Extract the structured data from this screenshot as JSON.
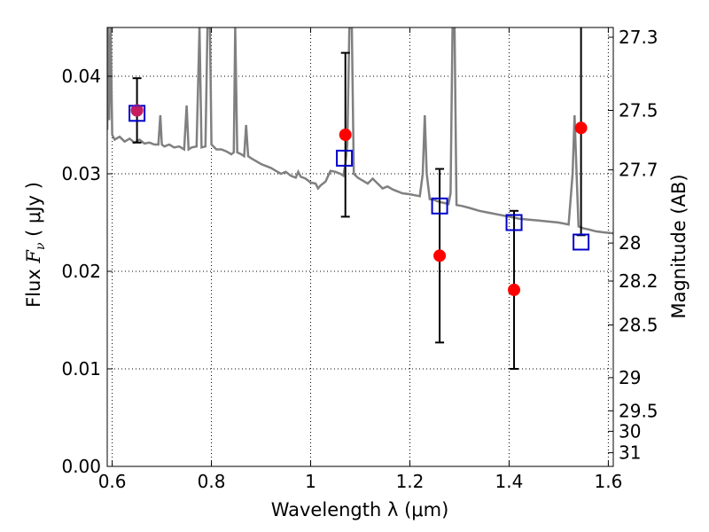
{
  "chart_data": {
    "type": "scatter",
    "xlabel": "Wavelength  λ (μm)",
    "ylabel_prefix": "Flux  ",
    "ylabel_symbol": "F",
    "ylabel_sub": "ν",
    "ylabel_suffix": "  (  μJy )",
    "ylabel_right": "Magnitude (AB)",
    "xlim": [
      0.59,
      1.61
    ],
    "ylim": [
      0.0,
      0.045
    ],
    "grid": true,
    "x_ticks": [
      {
        "value": 0.6,
        "label": "0.6"
      },
      {
        "value": 0.8,
        "label": "0.8"
      },
      {
        "value": 1.0,
        "label": "1"
      },
      {
        "value": 1.2,
        "label": "1.2"
      },
      {
        "value": 1.4,
        "label": "1.4"
      },
      {
        "value": 1.6,
        "label": "1.6"
      }
    ],
    "y_ticks": [
      {
        "value": 0.0,
        "label": "0.00"
      },
      {
        "value": 0.01,
        "label": "0.01"
      },
      {
        "value": 0.02,
        "label": "0.02"
      },
      {
        "value": 0.03,
        "label": "0.03"
      },
      {
        "value": 0.04,
        "label": "0.04"
      }
    ],
    "right_ticks": [
      {
        "flux": 0.044,
        "label": "27.3"
      },
      {
        "flux": 0.0365,
        "label": "27.5"
      },
      {
        "flux": 0.0304,
        "label": "27.7"
      },
      {
        "flux": 0.0229,
        "label": "28"
      },
      {
        "flux": 0.019,
        "label": "28.2"
      },
      {
        "flux": 0.0145,
        "label": "28.5"
      },
      {
        "flux": 0.0091,
        "label": "29"
      },
      {
        "flux": 0.0057,
        "label": "29.5"
      },
      {
        "flux": 0.0036,
        "label": "30"
      },
      {
        "flux": 0.0014,
        "label": "31"
      }
    ],
    "series": [
      {
        "kind": "line",
        "color": "#808080",
        "points": [
          [
            0.59,
            0.0345
          ],
          [
            0.592,
            0.045
          ],
          [
            0.594,
            0.0355
          ],
          [
            0.597,
            0.045
          ],
          [
            0.6,
            0.034
          ],
          [
            0.605,
            0.0335
          ],
          [
            0.615,
            0.0338
          ],
          [
            0.625,
            0.0333
          ],
          [
            0.635,
            0.0336
          ],
          [
            0.645,
            0.0332
          ],
          [
            0.655,
            0.0335
          ],
          [
            0.665,
            0.0331
          ],
          [
            0.675,
            0.0332
          ],
          [
            0.685,
            0.033
          ],
          [
            0.693,
            0.033
          ],
          [
            0.697,
            0.036
          ],
          [
            0.7,
            0.033
          ],
          [
            0.705,
            0.0328
          ],
          [
            0.715,
            0.033
          ],
          [
            0.725,
            0.0327
          ],
          [
            0.735,
            0.0328
          ],
          [
            0.745,
            0.0325
          ],
          [
            0.75,
            0.037
          ],
          [
            0.754,
            0.0325
          ],
          [
            0.76,
            0.0327
          ],
          [
            0.77,
            0.0328
          ],
          [
            0.776,
            0.045
          ],
          [
            0.78,
            0.0327
          ],
          [
            0.788,
            0.0328
          ],
          [
            0.792,
            0.045
          ],
          [
            0.797,
            0.045
          ],
          [
            0.8,
            0.033
          ],
          [
            0.81,
            0.0325
          ],
          [
            0.82,
            0.0325
          ],
          [
            0.83,
            0.0323
          ],
          [
            0.84,
            0.032
          ],
          [
            0.845,
            0.0322
          ],
          [
            0.848,
            0.045
          ],
          [
            0.852,
            0.0322
          ],
          [
            0.86,
            0.032
          ],
          [
            0.866,
            0.0318
          ],
          [
            0.87,
            0.035
          ],
          [
            0.874,
            0.0318
          ],
          [
            0.88,
            0.0316
          ],
          [
            0.89,
            0.0313
          ],
          [
            0.9,
            0.031
          ],
          [
            0.91,
            0.0308
          ],
          [
            0.92,
            0.0306
          ],
          [
            0.93,
            0.0303
          ],
          [
            0.94,
            0.03
          ],
          [
            0.95,
            0.0302
          ],
          [
            0.96,
            0.0298
          ],
          [
            0.97,
            0.0296
          ],
          [
            0.975,
            0.0302
          ],
          [
            0.98,
            0.0297
          ],
          [
            0.99,
            0.0295
          ],
          [
            1.0,
            0.0291
          ],
          [
            1.01,
            0.029
          ],
          [
            1.015,
            0.0285
          ],
          [
            1.02,
            0.0288
          ],
          [
            1.03,
            0.0292
          ],
          [
            1.04,
            0.0303
          ],
          [
            1.05,
            0.0302
          ],
          [
            1.06,
            0.03
          ],
          [
            1.066,
            0.0298
          ],
          [
            1.07,
            0.031
          ],
          [
            1.074,
            0.033
          ],
          [
            1.078,
            0.045
          ],
          [
            1.083,
            0.045
          ],
          [
            1.087,
            0.03
          ],
          [
            1.095,
            0.0296
          ],
          [
            1.105,
            0.0293
          ],
          [
            1.115,
            0.029
          ],
          [
            1.125,
            0.0295
          ],
          [
            1.135,
            0.029
          ],
          [
            1.145,
            0.0285
          ],
          [
            1.155,
            0.0287
          ],
          [
            1.165,
            0.0284
          ],
          [
            1.175,
            0.0282
          ],
          [
            1.185,
            0.028
          ],
          [
            1.2,
            0.0279
          ],
          [
            1.21,
            0.0278
          ],
          [
            1.22,
            0.0277
          ],
          [
            1.226,
            0.03
          ],
          [
            1.23,
            0.036
          ],
          [
            1.234,
            0.03
          ],
          [
            1.24,
            0.0274
          ],
          [
            1.25,
            0.0273
          ],
          [
            1.26,
            0.0271
          ],
          [
            1.27,
            0.027
          ],
          [
            1.278,
            0.0269
          ],
          [
            1.282,
            0.028
          ],
          [
            1.286,
            0.045
          ],
          [
            1.29,
            0.045
          ],
          [
            1.294,
            0.0268
          ],
          [
            1.305,
            0.0267
          ],
          [
            1.32,
            0.0265
          ],
          [
            1.34,
            0.0262
          ],
          [
            1.36,
            0.026
          ],
          [
            1.38,
            0.0258
          ],
          [
            1.4,
            0.0256
          ],
          [
            1.42,
            0.0254
          ],
          [
            1.44,
            0.0253
          ],
          [
            1.46,
            0.0252
          ],
          [
            1.48,
            0.0251
          ],
          [
            1.5,
            0.025
          ],
          [
            1.52,
            0.0248
          ],
          [
            1.528,
            0.03
          ],
          [
            1.532,
            0.036
          ],
          [
            1.536,
            0.03
          ],
          [
            1.54,
            0.0246
          ],
          [
            1.55,
            0.0244
          ],
          [
            1.56,
            0.0243
          ],
          [
            1.575,
            0.0241
          ],
          [
            1.59,
            0.024
          ],
          [
            1.61,
            0.0239
          ]
        ]
      },
      {
        "kind": "observed",
        "color": "#ff0000",
        "points": [
          {
            "x": 0.65,
            "y": 0.0365,
            "err": 0.0033
          },
          {
            "x": 1.07,
            "y": 0.034,
            "err": 0.0084
          },
          {
            "x": 1.26,
            "y": 0.0216,
            "err": 0.0089
          },
          {
            "x": 1.41,
            "y": 0.0181,
            "err": 0.0081
          },
          {
            "x": 1.545,
            "y": 0.0347,
            "err": 0.011
          }
        ]
      },
      {
        "kind": "model-photometry",
        "color": "#0000cc",
        "points": [
          {
            "x": 0.65,
            "y": 0.0362
          },
          {
            "x": 1.068,
            "y": 0.0316
          },
          {
            "x": 1.26,
            "y": 0.0267
          },
          {
            "x": 1.41,
            "y": 0.025
          },
          {
            "x": 1.545,
            "y": 0.023
          }
        ]
      }
    ]
  }
}
